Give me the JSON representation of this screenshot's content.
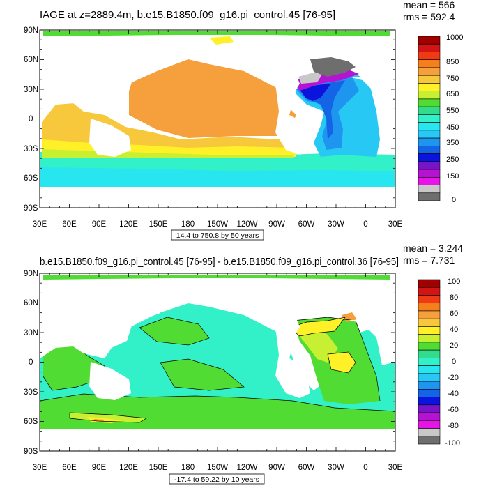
{
  "panels": [
    {
      "title": "IAGE at z=2889.4m, b.e15.B1850.f09_g16.pi_control.45 [76-95]",
      "stat_mean": "mean = 566",
      "stat_rms": "rms = 592.4",
      "range_label": "14.4 to 750.8 by 50 years",
      "colorbar_labels": [
        "1000",
        "850",
        "750",
        "650",
        "550",
        "450",
        "350",
        "250",
        "150",
        "0"
      ],
      "land_color": "#ffffff"
    },
    {
      "title": "b.e15.B1850.f09_g16.pi_control.45 [76-95] - b.e15.B1850.f09_g16.pi_control.36 [76-95]",
      "stat_mean": "mean = 3.244",
      "stat_rms": "rms = 7.731",
      "range_label": "-17.4 to 59.22 by 10 years",
      "colorbar_labels": [
        "100",
        "80",
        "60",
        "40",
        "20",
        "0",
        "-20",
        "-40",
        "-60",
        "-80",
        "-100"
      ],
      "land_color": "#ffffff"
    }
  ],
  "axes": {
    "lat_labels": [
      "90N",
      "60N",
      "30N",
      "0",
      "30S",
      "60S",
      "90S"
    ],
    "lon_labels": [
      "30E",
      "60E",
      "90E",
      "120E",
      "150E",
      "180",
      "150W",
      "120W",
      "90W",
      "60W",
      "30W",
      "0",
      "30E"
    ]
  },
  "colorbar_colors": [
    "#a00000",
    "#d21414",
    "#ef3a14",
    "#f57f1c",
    "#f5a03c",
    "#f8c83c",
    "#fff028",
    "#c8f032",
    "#50dc32",
    "#32dc8c",
    "#32f0c8",
    "#28e6f0",
    "#28c8f5",
    "#1e96f0",
    "#1464e6",
    "#0a14dc",
    "#7814c8",
    "#b414d2",
    "#e614e6",
    "#c8c8c8",
    "#6e6e6e"
  ],
  "field_colors": {
    "p1_base": "#f5a03c",
    "p1_yellow": "#fff028",
    "p1_gold": "#f8c83c",
    "p1_teal": "#32f0c8",
    "p1_cyan": "#28e6f0",
    "p1_green": "#50dc32",
    "p1_lime": "#c8f032",
    "p1_blue1": "#28c8f5",
    "p1_blue2": "#1e96f0",
    "p1_blue3": "#1464e6",
    "p1_deep": "#0a14dc",
    "p1_purple": "#b414d2",
    "p1_gray": "#c8c8c8",
    "p1_dark": "#6e6e6e",
    "p2_base": "#32f0c8",
    "p2_green": "#50dc32",
    "p2_lime": "#c8f032",
    "p2_yellow": "#fff028",
    "p2_orange": "#f5a03c",
    "p2_red": "#d21414",
    "p2_cyan": "#28e6f0"
  }
}
